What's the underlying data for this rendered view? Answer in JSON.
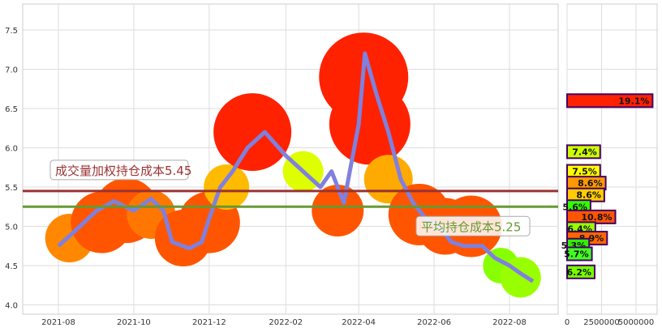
{
  "chart_data": {
    "type": "line",
    "title": "",
    "xlabel": "",
    "ylabel": "",
    "ylim": [
      3.9,
      7.8
    ],
    "yticks": [
      "4.0",
      "4.5",
      "5.0",
      "5.5",
      "6.0",
      "6.5",
      "7.0",
      "7.5"
    ],
    "xticks": [
      "2021-08",
      "2021-10",
      "2021-12",
      "2022-02",
      "2022-04",
      "2022-06",
      "2022-08"
    ],
    "grid": true,
    "series": [
      {
        "name": "price",
        "color": "#8080dd",
        "points": [
          [
            "2021-08-01",
            4.75
          ],
          [
            "2021-08-15",
            4.95
          ],
          [
            "2021-09-01",
            5.2
          ],
          [
            "2021-09-15",
            5.32
          ],
          [
            "2021-10-01",
            5.2
          ],
          [
            "2021-10-15",
            5.35
          ],
          [
            "2021-10-25",
            5.2
          ],
          [
            "2021-11-01",
            4.8
          ],
          [
            "2021-11-15",
            4.72
          ],
          [
            "2021-11-25",
            4.8
          ],
          [
            "2021-12-01",
            5.1
          ],
          [
            "2021-12-10",
            5.5
          ],
          [
            "2021-12-20",
            5.7
          ],
          [
            "2022-01-01",
            6.0
          ],
          [
            "2022-01-15",
            6.2
          ],
          [
            "2022-02-01",
            5.9
          ],
          [
            "2022-02-15",
            5.7
          ],
          [
            "2022-03-01",
            5.5
          ],
          [
            "2022-03-10",
            5.7
          ],
          [
            "2022-03-20",
            5.3
          ],
          [
            "2022-04-01",
            6.3
          ],
          [
            "2022-04-06",
            7.2
          ],
          [
            "2022-04-15",
            6.7
          ],
          [
            "2022-04-25",
            6.2
          ],
          [
            "2022-05-05",
            5.6
          ],
          [
            "2022-05-15",
            5.3
          ],
          [
            "2022-05-25",
            5.1
          ],
          [
            "2022-06-05",
            5.0
          ],
          [
            "2022-06-15",
            4.8
          ],
          [
            "2022-06-25",
            4.75
          ],
          [
            "2022-07-10",
            4.75
          ],
          [
            "2022-07-20",
            4.6
          ],
          [
            "2022-08-01",
            4.5
          ],
          [
            "2022-08-10",
            4.4
          ],
          [
            "2022-08-20",
            4.3
          ]
        ]
      }
    ],
    "hlines": [
      {
        "label": "成交量加权持仓成本5.45",
        "value": 5.45,
        "color": "#993333"
      },
      {
        "label": "平均持仓成本5.25",
        "value": 5.25,
        "color": "#669933"
      }
    ],
    "bubbles": [
      [
        "2021-08-10",
        4.85,
        "#ff8800",
        30
      ],
      [
        "2021-09-05",
        5.05,
        "#ff5500",
        38
      ],
      [
        "2021-09-25",
        5.2,
        "#ff5500",
        40
      ],
      [
        "2021-10-15",
        5.15,
        "#ff7700",
        30
      ],
      [
        "2021-11-10",
        4.85,
        "#ff5500",
        35
      ],
      [
        "2021-12-01",
        5.05,
        "#ff5500",
        38
      ],
      [
        "2021-12-15",
        5.5,
        "#ffbb00",
        28
      ],
      [
        "2022-01-05",
        6.2,
        "#ff2200",
        48
      ],
      [
        "2022-02-15",
        5.7,
        "#ddff00",
        25
      ],
      [
        "2022-03-15",
        5.2,
        "#ff5500",
        32
      ],
      [
        "2022-04-05",
        6.9,
        "#ff2200",
        55
      ],
      [
        "2022-04-10",
        6.3,
        "#ff2200",
        50
      ],
      [
        "2022-04-25",
        5.6,
        "#ffaa00",
        30
      ],
      [
        "2022-05-20",
        5.15,
        "#ff5500",
        38
      ],
      [
        "2022-06-10",
        5.0,
        "#ff5500",
        35
      ],
      [
        "2022-07-01",
        5.0,
        "#ff5500",
        38
      ],
      [
        "2022-07-25",
        4.5,
        "#88ff00",
        22
      ],
      [
        "2022-08-10",
        4.35,
        "#99ff00",
        25
      ]
    ],
    "volume_profile": {
      "xticks": [
        "0",
        "2500000",
        "5000000"
      ],
      "xlim": [
        0,
        6700000
      ],
      "bars": [
        {
          "price": 6.6,
          "volume": 6200000,
          "label": "19.1%",
          "color": "#ff2200"
        },
        {
          "price": 5.95,
          "volume": 2400000,
          "label": "7.4%",
          "color": "#ccff00"
        },
        {
          "price": 5.7,
          "volume": 2400000,
          "label": "7.5%",
          "color": "#ffff00"
        },
        {
          "price": 5.55,
          "volume": 2800000,
          "label": "8.6%",
          "color": "#ff9900"
        },
        {
          "price": 5.4,
          "volume": 2700000,
          "label": "8.6%",
          "color": "#ffcc00"
        },
        {
          "price": 5.25,
          "volume": 1700000,
          "label": "5.6%",
          "color": "#33ff00"
        },
        {
          "price": 5.12,
          "volume": 3500000,
          "label": "10.8%",
          "color": "#ff5500"
        },
        {
          "price": 4.97,
          "volume": 2050000,
          "label": "6.4%",
          "color": "#99ff00"
        },
        {
          "price": 4.85,
          "volume": 2900000,
          "label": "8.9%",
          "color": "#ff6600"
        },
        {
          "price": 4.76,
          "volume": 1600000,
          "label": "5.3%",
          "color": "#33ee00"
        },
        {
          "price": 4.65,
          "volume": 1800000,
          "label": "5.7%",
          "color": "#44ff22"
        },
        {
          "price": 4.42,
          "volume": 2000000,
          "label": "6.2%",
          "color": "#77ff00"
        }
      ]
    }
  }
}
